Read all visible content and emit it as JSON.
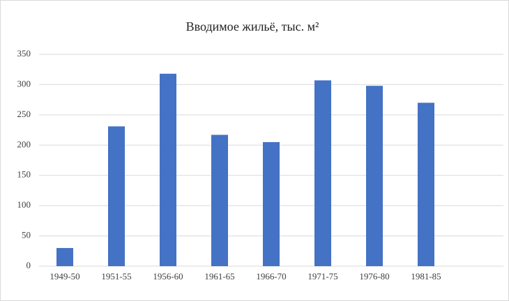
{
  "chart_data": {
    "type": "bar",
    "title": "Вводимое жильё, тыс. м²",
    "categories": [
      "1949-50",
      "1951-55",
      "1956-60",
      "1961-65",
      "1966-70",
      "1971-75",
      "1976-80",
      "1981-85",
      null
    ],
    "values": [
      30,
      231,
      318,
      217,
      205,
      307,
      298,
      270,
      null
    ],
    "color": "#4472c4",
    "ylim": [
      0,
      350
    ],
    "yticks": [
      0,
      50,
      100,
      150,
      200,
      250,
      300,
      350
    ],
    "grid": true
  }
}
